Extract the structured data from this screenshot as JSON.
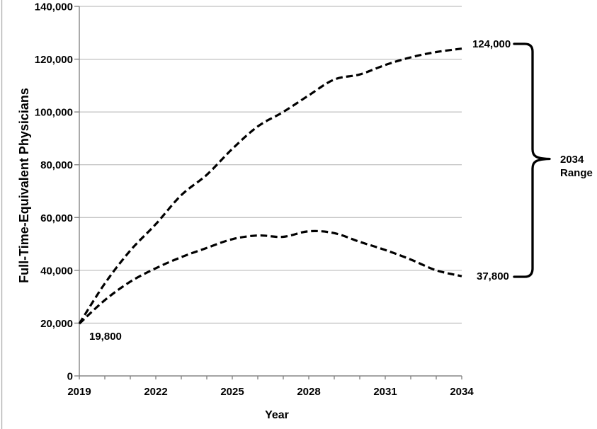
{
  "page": {
    "background": "#ffffff",
    "edge_color": "#b3b3b3"
  },
  "chart_data": {
    "type": "line",
    "title": "",
    "xlabel": "Year",
    "ylabel": "Full-Time-Equivalent Physicians",
    "x": [
      2019,
      2020,
      2021,
      2022,
      2023,
      2024,
      2025,
      2026,
      2027,
      2028,
      2029,
      2030,
      2031,
      2032,
      2033,
      2034
    ],
    "xlim": [
      2019,
      2034
    ],
    "xtick_labels": [
      "2019",
      "2022",
      "2025",
      "2028",
      "2031",
      "2034"
    ],
    "x_minor_tick_every": 1,
    "ylim": [
      0,
      140000
    ],
    "ytick_interval": 20000,
    "ytick_labels": [
      "0",
      "20,000",
      "40,000",
      "60,000",
      "80,000",
      "100,000",
      "120,000",
      "140,000"
    ],
    "grid": "horizontal",
    "legend": "none",
    "line_style": "dashed",
    "series": [
      {
        "name": "projected-range-high",
        "color": "#000000",
        "values": [
          19800,
          35000,
          47500,
          57500,
          68500,
          76200,
          86000,
          94500,
          100000,
          106300,
          112300,
          114200,
          117800,
          120700,
          122700,
          124000
        ]
      },
      {
        "name": "projected-range-low",
        "color": "#000000",
        "values": [
          19800,
          28700,
          35700,
          40800,
          45000,
          48500,
          51800,
          53200,
          52700,
          54800,
          54100,
          50800,
          47700,
          44100,
          40000,
          37800
        ]
      }
    ],
    "annotations": {
      "start": {
        "text": "19,800",
        "x": 2019,
        "y": 19800
      },
      "high_end": {
        "text": "124,000",
        "x": 2034,
        "y": 124000
      },
      "low_end": {
        "text": "37,800",
        "x": 2034,
        "y": 37800
      },
      "range": {
        "line1": "2034",
        "line2": "Range"
      }
    },
    "colors": {
      "line": "#000000",
      "grid": "#b0b0b0",
      "axis": "#858585",
      "text": "#000000"
    }
  }
}
